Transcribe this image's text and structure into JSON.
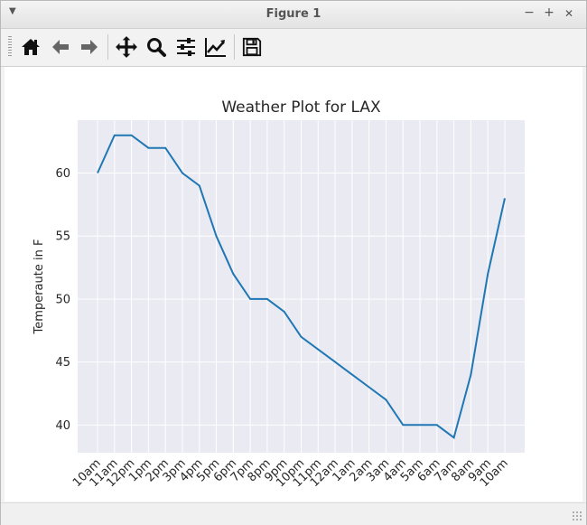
{
  "window": {
    "title": "Figure 1",
    "minimize_glyph": "−",
    "maximize_glyph": "+",
    "close_glyph": "✕",
    "menu_glyph": "▼"
  },
  "toolbar": {
    "items": [
      {
        "name": "home-button",
        "icon": "home-icon"
      },
      {
        "name": "back-button",
        "icon": "arrow-left-icon"
      },
      {
        "name": "forward-button",
        "icon": "arrow-right-icon"
      },
      {
        "name": "pan-button",
        "icon": "move-icon"
      },
      {
        "name": "zoom-button",
        "icon": "magnifier-icon"
      },
      {
        "name": "configure-subplots-button",
        "icon": "sliders-icon"
      },
      {
        "name": "edit-axis-button",
        "icon": "line-chart-icon"
      },
      {
        "name": "save-button",
        "icon": "floppy-disk-icon"
      }
    ]
  },
  "colors": {
    "axes_bg": "#eaeaf2",
    "grid": "#ffffff",
    "line": "#1f77b4",
    "text": "#262626"
  },
  "chart_data": {
    "type": "line",
    "title": "Weather Plot for LAX",
    "xlabel": "",
    "ylabel": "Temperaute in F",
    "categories": [
      "10am",
      "11am",
      "12pm",
      "1pm",
      "2pm",
      "3pm",
      "4pm",
      "5pm",
      "6pm",
      "7pm",
      "8pm",
      "9pm",
      "10pm",
      "11pm",
      "12am",
      "1am",
      "2am",
      "3am",
      "4am",
      "5am",
      "6am",
      "7am",
      "8am",
      "9am",
      "10am"
    ],
    "series": [
      {
        "values": [
          60,
          63,
          63,
          62,
          62,
          60,
          59,
          55,
          52,
          50,
          50,
          49,
          47,
          46,
          45,
          44,
          43,
          42,
          40,
          40,
          40,
          39,
          44,
          52,
          58
        ]
      }
    ],
    "yticks": [
      40,
      45,
      50,
      55,
      60
    ],
    "ylim": [
      37.8,
      64.2
    ],
    "grid": true
  }
}
